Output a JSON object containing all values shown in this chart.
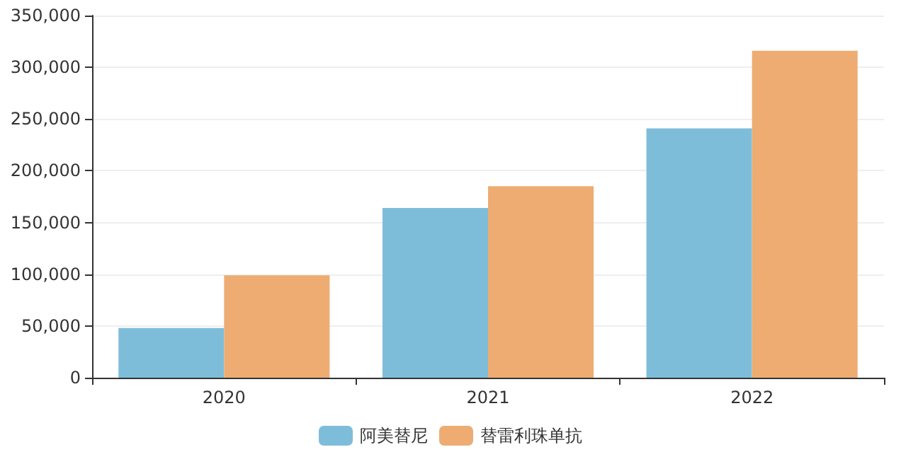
{
  "chart_data": {
    "type": "bar",
    "categories": [
      "2020",
      "2021",
      "2022"
    ],
    "series": [
      {
        "name": "阿美替尼",
        "color": "#7ebdd9",
        "values": [
          48000,
          164000,
          241000
        ]
      },
      {
        "name": "替雷利珠单抗",
        "color": "#eeac72",
        "values": [
          99000,
          185000,
          316000
        ]
      }
    ],
    "ylim": [
      0,
      350000
    ],
    "yticks": [
      0,
      {
        "value": 50000,
        "label": "50,000"
      },
      {
        "value": 100000,
        "label": "100,000"
      },
      {
        "value": 150000,
        "label": "150,000"
      },
      {
        "value": 200000,
        "label": "200,000"
      },
      {
        "value": 250000,
        "label": "250,000"
      },
      {
        "value": 300000,
        "label": "300,000"
      },
      {
        "value": 350000,
        "label": "350,000"
      }
    ],
    "grid": "y",
    "legend": "bottom"
  }
}
